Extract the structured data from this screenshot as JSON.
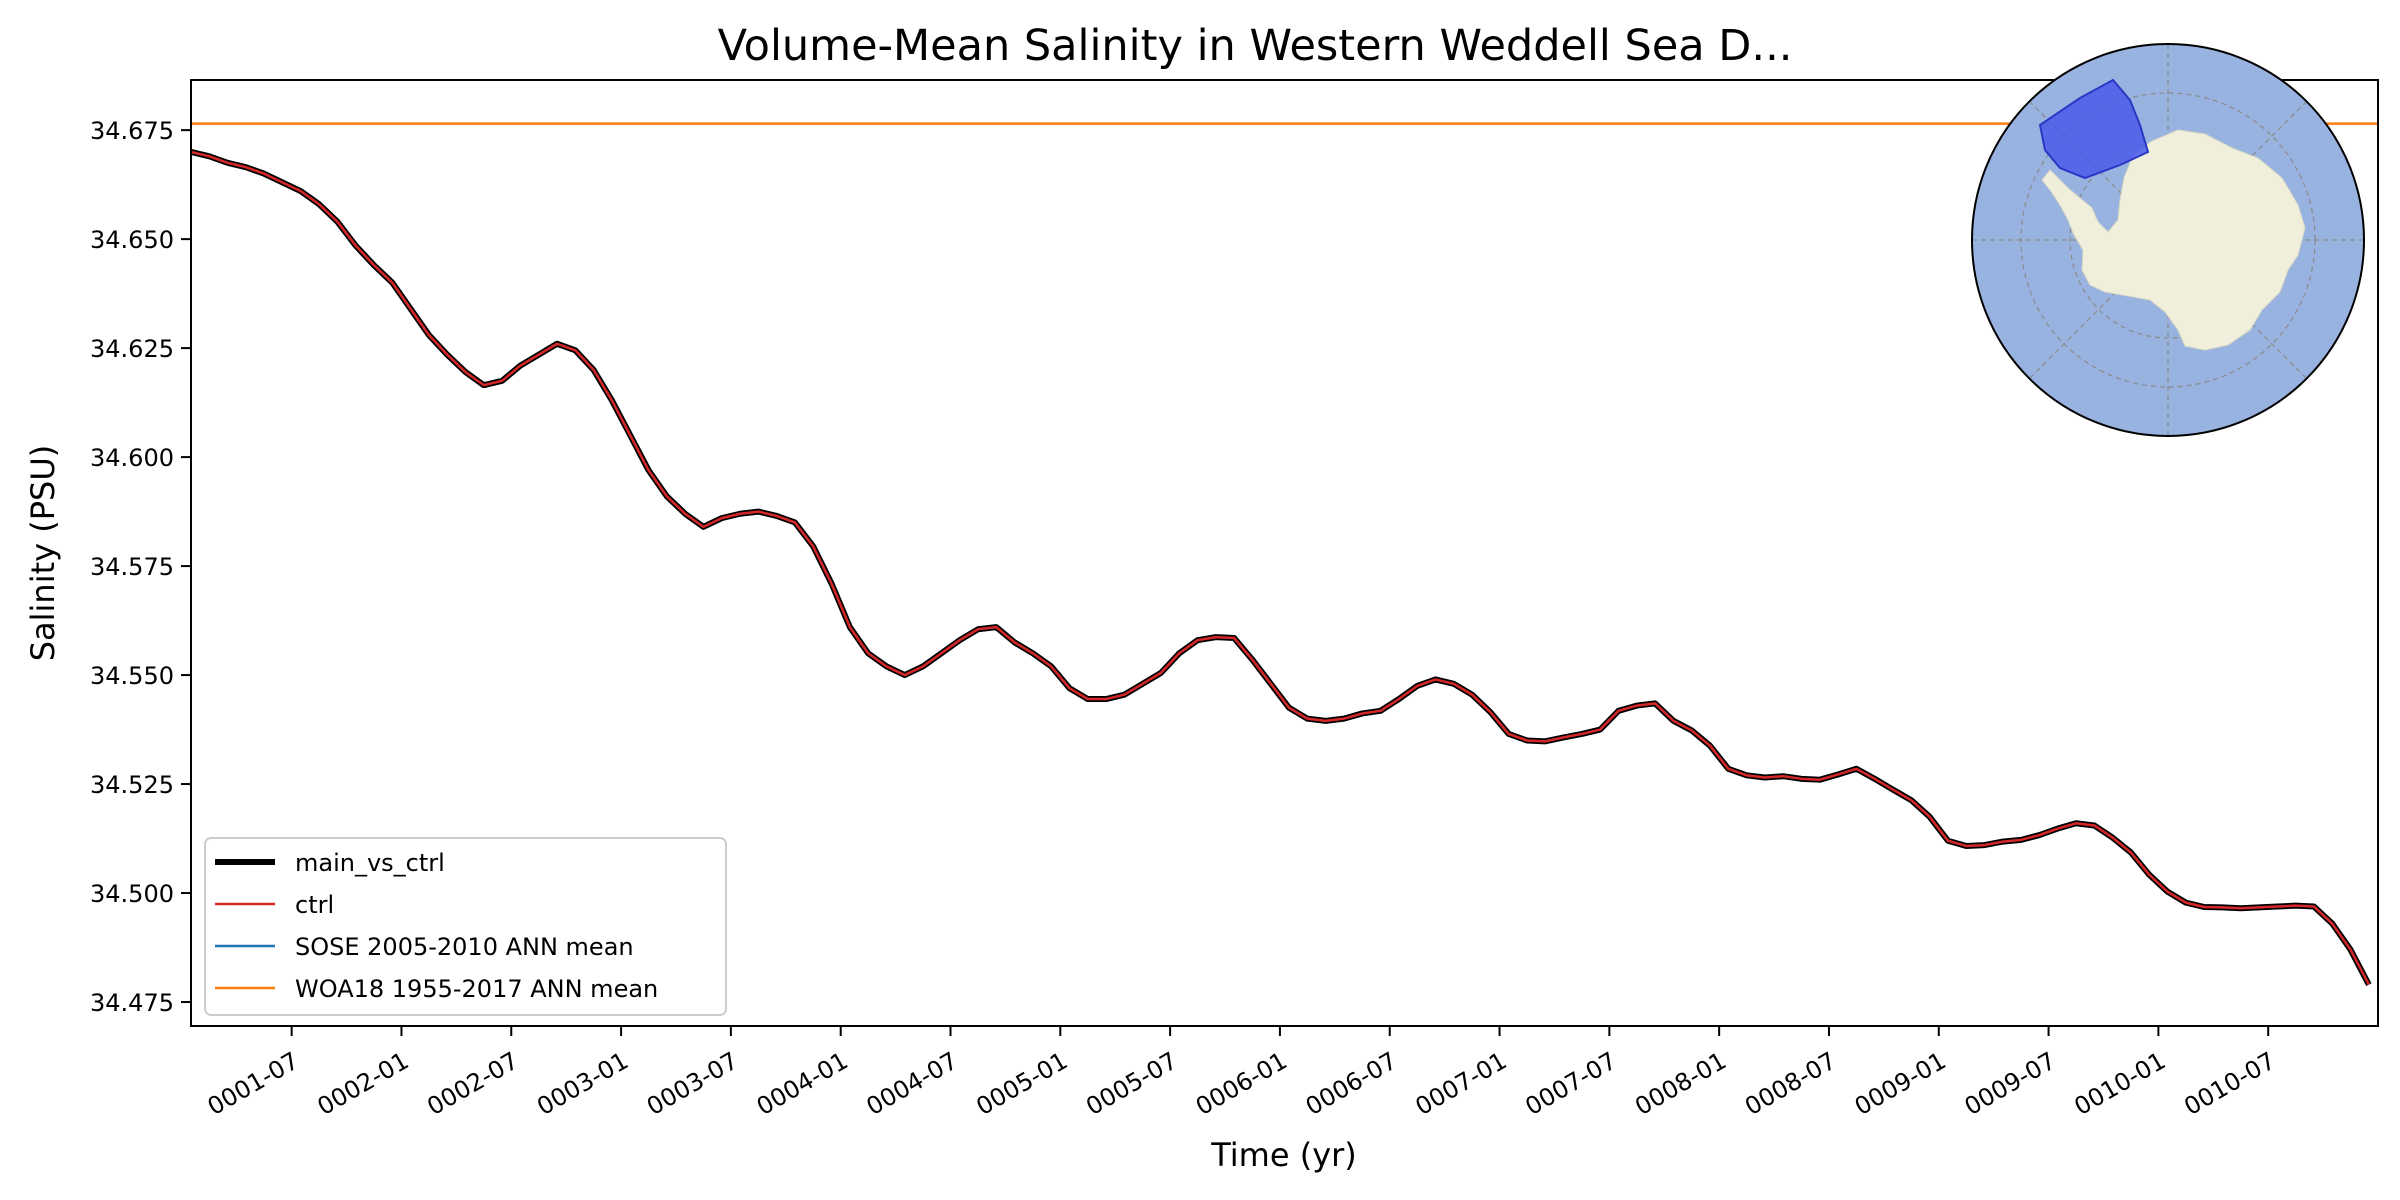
{
  "chart_data": {
    "type": "line",
    "title": "Volume-Mean Salinity in Western Weddell Sea D...",
    "xlabel": "Time (yr)",
    "ylabel": "Salinity (PSU)",
    "xlim": [
      0.0417,
      10.0
    ],
    "ylim": [
      34.4695,
      34.6865
    ],
    "grid": false,
    "legend_position": "lower-left",
    "y_ticks": [
      {
        "value": 34.475,
        "label": "34.475"
      },
      {
        "value": 34.5,
        "label": "34.500"
      },
      {
        "value": 34.525,
        "label": "34.525"
      },
      {
        "value": 34.55,
        "label": "34.550"
      },
      {
        "value": 34.575,
        "label": "34.575"
      },
      {
        "value": 34.6,
        "label": "34.600"
      },
      {
        "value": 34.625,
        "label": "34.625"
      },
      {
        "value": 34.65,
        "label": "34.650"
      },
      {
        "value": 34.675,
        "label": "34.675"
      }
    ],
    "x_ticks": [
      {
        "value": 0.5,
        "label": "0001-07"
      },
      {
        "value": 1.0,
        "label": "0002-01"
      },
      {
        "value": 1.5,
        "label": "0002-07"
      },
      {
        "value": 2.0,
        "label": "0003-01"
      },
      {
        "value": 2.5,
        "label": "0003-07"
      },
      {
        "value": 3.0,
        "label": "0004-01"
      },
      {
        "value": 3.5,
        "label": "0004-07"
      },
      {
        "value": 4.0,
        "label": "0005-01"
      },
      {
        "value": 4.5,
        "label": "0005-07"
      },
      {
        "value": 5.0,
        "label": "0006-01"
      },
      {
        "value": 5.5,
        "label": "0006-07"
      },
      {
        "value": 6.0,
        "label": "0007-01"
      },
      {
        "value": 6.5,
        "label": "0007-07"
      },
      {
        "value": 7.0,
        "label": "0008-01"
      },
      {
        "value": 7.5,
        "label": "0008-07"
      },
      {
        "value": 8.0,
        "label": "0009-01"
      },
      {
        "value": 8.5,
        "label": "0009-07"
      },
      {
        "value": 9.0,
        "label": "0010-01"
      },
      {
        "value": 9.5,
        "label": "0010-07"
      }
    ],
    "x": [
      0.0417,
      0.125,
      0.2083,
      0.2917,
      0.375,
      0.4583,
      0.5417,
      0.625,
      0.7083,
      0.7917,
      0.875,
      0.9583,
      1.0417,
      1.125,
      1.2083,
      1.2917,
      1.375,
      1.4583,
      1.5417,
      1.625,
      1.7083,
      1.7917,
      1.875,
      1.9583,
      2.0417,
      2.125,
      2.2083,
      2.2917,
      2.375,
      2.4583,
      2.5417,
      2.625,
      2.7083,
      2.7917,
      2.875,
      2.9583,
      3.0417,
      3.125,
      3.2083,
      3.2917,
      3.375,
      3.4583,
      3.5417,
      3.625,
      3.7083,
      3.7917,
      3.875,
      3.9583,
      4.0417,
      4.125,
      4.2083,
      4.2917,
      4.375,
      4.4583,
      4.5417,
      4.625,
      4.7083,
      4.7917,
      4.875,
      4.9583,
      5.0417,
      5.125,
      5.2083,
      5.2917,
      5.375,
      5.4583,
      5.5417,
      5.625,
      5.7083,
      5.7917,
      5.875,
      5.9583,
      6.0417,
      6.125,
      6.2083,
      6.2917,
      6.375,
      6.4583,
      6.5417,
      6.625,
      6.7083,
      6.7917,
      6.875,
      6.9583,
      7.0417,
      7.125,
      7.2083,
      7.2917,
      7.375,
      7.4583,
      7.5417,
      7.625,
      7.7083,
      7.7917,
      7.875,
      7.9583,
      8.0417,
      8.125,
      8.2083,
      8.2917,
      8.375,
      8.4583,
      8.5417,
      8.625,
      8.7083,
      8.7917,
      8.875,
      8.9583,
      9.0417,
      9.125,
      9.2083,
      9.2917,
      9.375,
      9.4583,
      9.5417,
      9.625,
      9.7083,
      9.7917,
      9.875,
      9.9583
    ],
    "series": [
      {
        "name": "main_vs_ctrl",
        "color": "#000000",
        "values": [
          34.67,
          34.669,
          34.6675,
          34.6665,
          34.665,
          34.663,
          34.661,
          34.658,
          34.654,
          34.6485,
          34.644,
          34.64,
          34.634,
          34.628,
          34.6235,
          34.6195,
          34.6165,
          34.6175,
          34.621,
          34.6235,
          34.626,
          34.6245,
          34.62,
          34.613,
          34.605,
          34.597,
          34.591,
          34.587,
          34.584,
          34.586,
          34.587,
          34.5875,
          34.5865,
          34.585,
          34.5795,
          34.571,
          34.561,
          34.555,
          34.552,
          34.55,
          34.552,
          34.555,
          34.558,
          34.5605,
          34.561,
          34.5575,
          34.555,
          34.552,
          34.547,
          34.5445,
          34.5445,
          34.5455,
          34.548,
          34.5505,
          34.555,
          34.558,
          34.5587,
          34.5585,
          34.5535,
          34.548,
          34.5425,
          34.54,
          34.5395,
          34.54,
          34.5412,
          34.5418,
          34.5445,
          34.5475,
          34.549,
          34.548,
          34.5455,
          34.5415,
          34.5365,
          34.535,
          34.5348,
          34.5357,
          34.5365,
          34.5375,
          34.5418,
          34.543,
          34.5435,
          34.5395,
          34.5373,
          34.5338,
          34.5285,
          34.527,
          34.5265,
          34.5268,
          34.5262,
          34.526,
          34.5272,
          34.5285,
          34.5262,
          34.5237,
          34.5213,
          34.5175,
          34.512,
          34.5108,
          34.511,
          34.5118,
          34.5122,
          34.5133,
          34.5148,
          34.516,
          34.5155,
          34.5127,
          34.5093,
          34.5042,
          34.5003,
          34.4978,
          34.4968,
          34.4967,
          34.4965,
          34.4967,
          34.4969,
          34.4971,
          34.4969,
          34.493,
          34.487,
          34.479
        ]
      },
      {
        "name": "ctrl",
        "color": "#d62728",
        "values": [
          34.67,
          34.669,
          34.6675,
          34.6665,
          34.665,
          34.663,
          34.661,
          34.658,
          34.654,
          34.6485,
          34.644,
          34.64,
          34.634,
          34.628,
          34.6235,
          34.6195,
          34.6165,
          34.6175,
          34.621,
          34.6235,
          34.626,
          34.6245,
          34.62,
          34.613,
          34.605,
          34.597,
          34.591,
          34.587,
          34.584,
          34.586,
          34.587,
          34.5875,
          34.5865,
          34.585,
          34.5795,
          34.571,
          34.561,
          34.555,
          34.552,
          34.55,
          34.552,
          34.555,
          34.558,
          34.5605,
          34.561,
          34.5575,
          34.555,
          34.552,
          34.547,
          34.5445,
          34.5445,
          34.5455,
          34.548,
          34.5505,
          34.555,
          34.558,
          34.5587,
          34.5585,
          34.5535,
          34.548,
          34.5425,
          34.54,
          34.5395,
          34.54,
          34.5412,
          34.5418,
          34.5445,
          34.5475,
          34.549,
          34.548,
          34.5455,
          34.5415,
          34.5365,
          34.535,
          34.5348,
          34.5357,
          34.5365,
          34.5375,
          34.5418,
          34.543,
          34.5435,
          34.5395,
          34.5373,
          34.5338,
          34.5285,
          34.527,
          34.5265,
          34.5268,
          34.5262,
          34.526,
          34.5272,
          34.5285,
          34.5262,
          34.5237,
          34.5213,
          34.5175,
          34.512,
          34.5108,
          34.511,
          34.5118,
          34.5122,
          34.5133,
          34.5148,
          34.516,
          34.5155,
          34.5127,
          34.5093,
          34.5042,
          34.5003,
          34.4978,
          34.4968,
          34.4967,
          34.4965,
          34.4967,
          34.4969,
          34.4971,
          34.4969,
          34.493,
          34.487,
          34.479
        ]
      },
      {
        "name": "SOSE 2005-2010 ANN mean",
        "color": "#1f77b4",
        "constant": null
      },
      {
        "name": "WOA18 1955-2017 ANN mean",
        "color": "#ff7f0e",
        "constant": 34.6765
      }
    ],
    "legend": [
      {
        "label": "main_vs_ctrl",
        "color": "#000000"
      },
      {
        "label": "ctrl",
        "color": "#d62728"
      },
      {
        "label": "SOSE 2005-2010 ANN mean",
        "color": "#1f77b4"
      },
      {
        "label": "WOA18 1955-2017 ANN mean",
        "color": "#ff7f0e"
      }
    ],
    "inset_map": {
      "projection": "south-polar-stereographic",
      "ocean_color": "#99b3e0",
      "land_color": "#efefdb",
      "region_color": "#4a5ae8"
    }
  }
}
